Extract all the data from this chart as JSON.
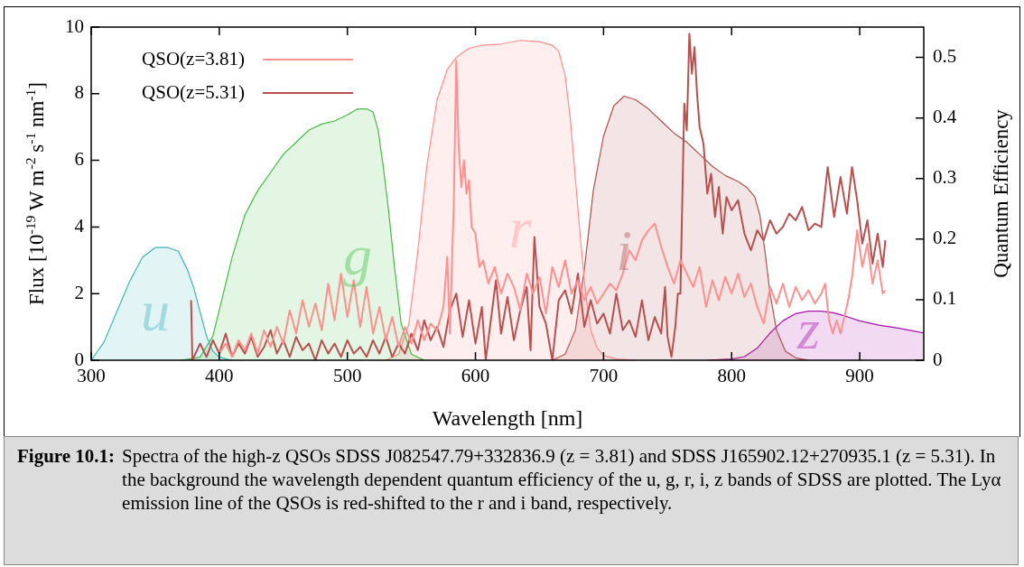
{
  "chart_data": {
    "type": "line",
    "xlabel": "Wavelength [nm]",
    "ylabel": "Flux [10$^{-19}$ W m$^{-2}$ s$^{-1}$ nm$^{-1}$]",
    "y2label": "Quantum Efficiency",
    "xlim": [
      300,
      950
    ],
    "xticks": [
      300,
      400,
      500,
      600,
      700,
      800,
      900
    ],
    "ylim": [
      0,
      10
    ],
    "yticks": [
      0,
      2,
      4,
      6,
      8,
      10
    ],
    "y2lim": [
      0,
      0.55
    ],
    "y2ticks": [
      0,
      0.1,
      0.2,
      0.3,
      0.4,
      0.5
    ],
    "legend": "top left",
    "marker": "none",
    "grid": false,
    "series": [
      {
        "name": "u",
        "type": "area",
        "axis": "y2",
        "color": "#40b4bc",
        "x": [
          300,
          310,
          320,
          330,
          340,
          350,
          360,
          368,
          375,
          380,
          385,
          390,
          395,
          400,
          410
        ],
        "values": [
          0,
          0.03,
          0.08,
          0.13,
          0.17,
          0.186,
          0.186,
          0.18,
          0.15,
          0.12,
          0.08,
          0.04,
          0.015,
          0.005,
          0
        ]
      },
      {
        "name": "g",
        "type": "area",
        "axis": "y2",
        "color": "#44bb44",
        "x": [
          370,
          385,
          395,
          402,
          410,
          420,
          430,
          440,
          450,
          460,
          470,
          480,
          490,
          500,
          508,
          515,
          520,
          524,
          528,
          532,
          537,
          542,
          550,
          560
        ],
        "values": [
          0,
          0.005,
          0.04,
          0.1,
          0.17,
          0.24,
          0.28,
          0.31,
          0.34,
          0.36,
          0.38,
          0.39,
          0.395,
          0.405,
          0.415,
          0.415,
          0.41,
          0.38,
          0.32,
          0.25,
          0.15,
          0.06,
          0.01,
          0
        ]
      },
      {
        "name": "r",
        "type": "area",
        "axis": "y2",
        "color": "#ff8c8c",
        "x": [
          530,
          540,
          548,
          555,
          562,
          570,
          578,
          585,
          595,
          605,
          620,
          635,
          650,
          660,
          665,
          670,
          674,
          678,
          682,
          686,
          690,
          695,
          700,
          710,
          725
        ],
        "values": [
          0,
          0.01,
          0.06,
          0.18,
          0.32,
          0.43,
          0.48,
          0.5,
          0.515,
          0.52,
          0.522,
          0.528,
          0.526,
          0.52,
          0.51,
          0.47,
          0.4,
          0.3,
          0.2,
          0.11,
          0.05,
          0.02,
          0.008,
          0.002,
          0
        ]
      },
      {
        "name": "i",
        "type": "area",
        "axis": "y2",
        "color": "#b05050",
        "x": [
          660,
          670,
          678,
          685,
          692,
          700,
          708,
          716,
          725,
          735,
          745,
          755,
          765,
          775,
          785,
          795,
          805,
          812,
          818,
          822,
          826,
          830,
          835,
          842,
          850,
          860
        ],
        "values": [
          0,
          0.01,
          0.05,
          0.15,
          0.28,
          0.37,
          0.42,
          0.436,
          0.43,
          0.415,
          0.395,
          0.375,
          0.36,
          0.34,
          0.32,
          0.305,
          0.295,
          0.285,
          0.27,
          0.24,
          0.18,
          0.11,
          0.05,
          0.015,
          0.004,
          0
        ]
      },
      {
        "name": "z",
        "type": "area",
        "axis": "y2",
        "color": "#aa10aa",
        "x": [
          780,
          800,
          810,
          820,
          830,
          840,
          850,
          860,
          870,
          880,
          890,
          900,
          915,
          930,
          950
        ],
        "values": [
          0,
          0.002,
          0.006,
          0.02,
          0.045,
          0.065,
          0.077,
          0.081,
          0.081,
          0.078,
          0.072,
          0.065,
          0.058,
          0.053,
          0.045
        ]
      },
      {
        "name": "QSO(z=3.81)",
        "type": "line",
        "color": "#ff9090",
        "x": [
          400,
          405,
          410,
          415,
          420,
          425,
          430,
          435,
          440,
          445,
          450,
          455,
          460,
          465,
          470,
          475,
          480,
          485,
          490,
          495,
          500,
          505,
          510,
          515,
          520,
          525,
          530,
          535,
          540,
          545,
          550,
          555,
          560,
          565,
          570,
          575,
          578,
          580,
          583,
          585,
          587,
          589,
          591,
          593,
          595,
          597,
          600,
          603,
          606,
          610,
          615,
          620,
          625,
          630,
          635,
          640,
          645,
          650,
          655,
          660,
          665,
          670,
          675,
          680,
          685,
          690,
          695,
          700,
          705,
          710,
          715,
          720,
          725,
          730,
          735,
          740,
          745,
          750,
          755,
          760,
          765,
          770,
          775,
          780,
          785,
          790,
          795,
          800,
          805,
          810,
          815,
          820,
          825,
          830,
          835,
          840,
          845,
          850,
          855,
          860,
          865,
          870,
          873,
          876,
          879,
          882,
          885,
          888,
          891,
          894,
          898,
          902,
          906,
          910,
          914,
          918,
          920
        ],
        "values": [
          0.2,
          0.5,
          0.1,
          0.6,
          0.3,
          0.8,
          0.2,
          0.9,
          0.4,
          1.0,
          0.5,
          1.5,
          0.8,
          1.8,
          1.0,
          1.7,
          0.9,
          2.3,
          1.2,
          2.6,
          1.3,
          2.4,
          1.0,
          2.2,
          0.8,
          1.6,
          0.6,
          1.3,
          0.4,
          1.0,
          0.5,
          1.2,
          0.6,
          1.1,
          0.9,
          1.6,
          3.1,
          0.8,
          4.6,
          9.0,
          6.3,
          5.2,
          6.0,
          5.0,
          5.4,
          4.0,
          3.8,
          2.8,
          3.0,
          2.3,
          2.8,
          2.0,
          2.6,
          2.2,
          1.5,
          2.6,
          2.0,
          2.5,
          1.4,
          2.8,
          2.2,
          3.0,
          2.0,
          2.4,
          1.8,
          2.2,
          1.7,
          2.0,
          2.3,
          2.1,
          2.6,
          3.3,
          3.0,
          3.6,
          3.9,
          4.1,
          3.4,
          2.8,
          2.3,
          3.0,
          2.6,
          2.2,
          2.8,
          1.6,
          2.4,
          1.8,
          2.5,
          2.0,
          2.6,
          1.9,
          2.3,
          1.6,
          1.1,
          2.2,
          1.7,
          2.3,
          1.6,
          2.2,
          1.8,
          2.1,
          1.7,
          2.0,
          2.3,
          1.2,
          0.8,
          1.2,
          0.8,
          1.3,
          1.8,
          2.5,
          3.9,
          2.8,
          3.5,
          2.3,
          3.0,
          2.0,
          2.1
        ]
      },
      {
        "name": "QSO(z=5.31)",
        "type": "line",
        "color": "#b85050",
        "x": [
          378,
          379,
          385,
          390,
          395,
          400,
          405,
          410,
          415,
          420,
          425,
          430,
          435,
          440,
          445,
          450,
          455,
          460,
          465,
          470,
          475,
          480,
          485,
          490,
          495,
          500,
          505,
          510,
          515,
          520,
          525,
          530,
          535,
          540,
          545,
          550,
          555,
          560,
          565,
          570,
          575,
          580,
          585,
          590,
          595,
          600,
          605,
          608,
          612,
          616,
          620,
          625,
          630,
          635,
          640,
          643,
          646,
          650,
          655,
          660,
          665,
          670,
          675,
          680,
          685,
          690,
          695,
          700,
          705,
          710,
          715,
          720,
          725,
          730,
          735,
          740,
          745,
          748,
          750,
          753,
          756,
          758,
          760,
          763,
          765,
          767,
          769,
          771,
          773,
          775,
          778,
          781,
          784,
          787,
          790,
          793,
          796,
          800,
          805,
          810,
          815,
          820,
          825,
          830,
          835,
          840,
          845,
          850,
          855,
          860,
          865,
          870,
          875,
          880,
          885,
          890,
          894,
          898,
          902,
          906,
          910,
          914,
          918,
          920
        ],
        "values": [
          1.8,
          0.0,
          0.5,
          0.1,
          0.6,
          0.2,
          0.8,
          0.1,
          0.5,
          0.2,
          0.7,
          0.1,
          0.4,
          0.9,
          0.2,
          0.6,
          0.1,
          0.7,
          0.3,
          0.5,
          0.0,
          0.6,
          0.2,
          0.5,
          0.1,
          0.6,
          0.2,
          0.4,
          0.1,
          0.6,
          0.2,
          0.7,
          0.1,
          0.5,
          0.2,
          0.8,
          0.3,
          1.2,
          0.6,
          1.0,
          0.4,
          1.5,
          2.0,
          0.7,
          1.8,
          0.5,
          1.6,
          0.0,
          1.2,
          2.4,
          0.8,
          1.9,
          0.6,
          1.5,
          2.2,
          0.3,
          3.7,
          1.6,
          1.1,
          0.0,
          1.8,
          2.1,
          1.4,
          2.6,
          1.0,
          1.8,
          1.1,
          1.4,
          0.8,
          2.0,
          0.9,
          1.2,
          0.7,
          1.8,
          0.6,
          1.3,
          0.8,
          2.2,
          0.7,
          0.1,
          1.0,
          2.0,
          2.0,
          7.7,
          6.9,
          9.8,
          8.6,
          9.4,
          8.0,
          7.0,
          6.5,
          5.0,
          5.6,
          4.3,
          5.2,
          3.8,
          4.9,
          4.5,
          4.8,
          3.8,
          3.3,
          3.9,
          3.6,
          4.2,
          3.8,
          4.0,
          4.4,
          4.2,
          4.6,
          3.9,
          4.1,
          4.0,
          5.8,
          4.3,
          5.5,
          4.4,
          5.8,
          4.8,
          3.5,
          4.2,
          2.9,
          3.8,
          2.8,
          3.6
        ]
      }
    ],
    "annotations": [
      "Figure 10.1:",
      "Spectra of the high-z QSOs SDSS J082547.79+332836.9 (z = 3.81) and SDSS J165902.12+270935.1 (z = 5.31). In the background the wavelength dependent quantum efficiency of the u, g, r, i, z bands of SDSS are plotted. The Lyα emission line of the QSOs is red-shifted to the r and i band, respectively."
    ]
  }
}
